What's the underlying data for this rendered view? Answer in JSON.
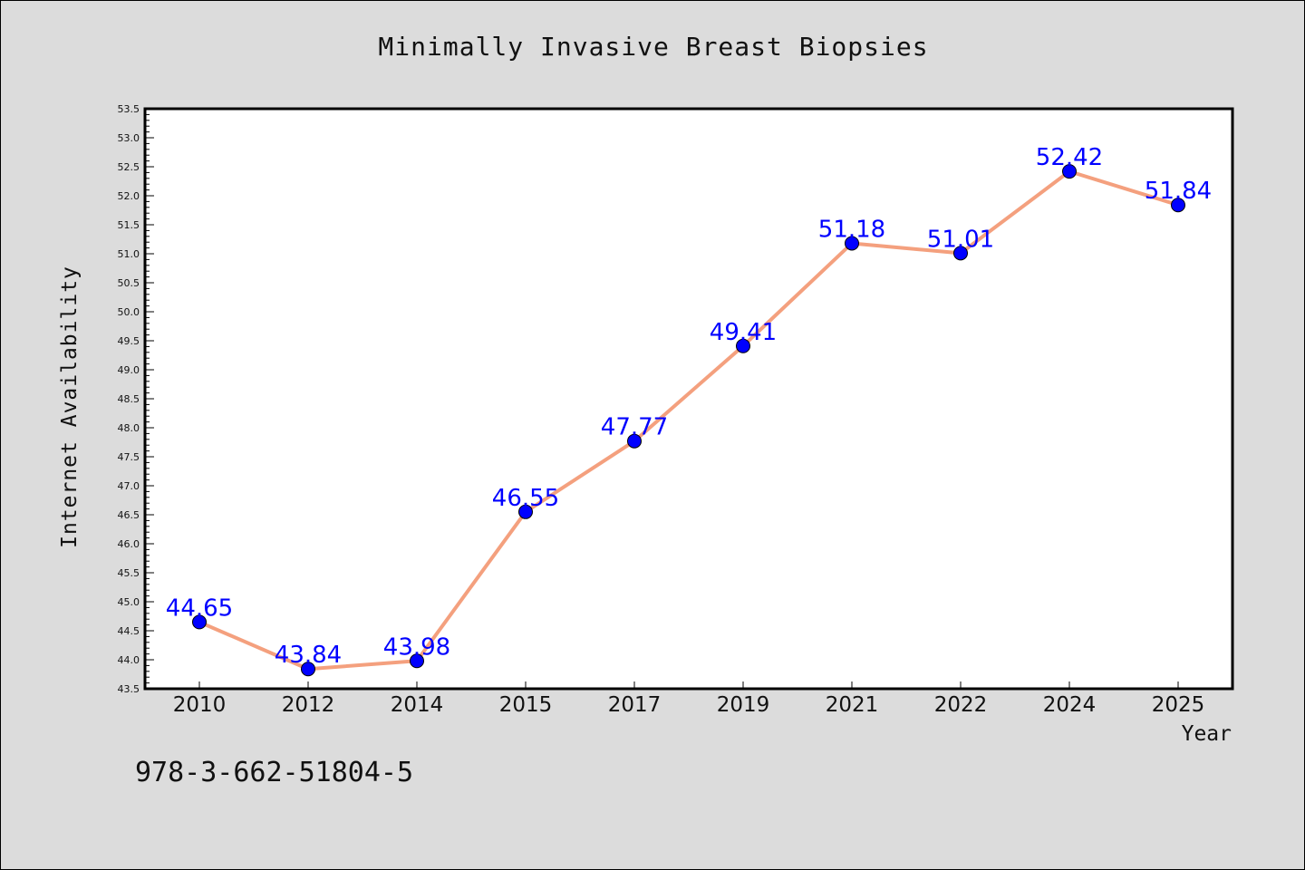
{
  "chart_data": {
    "type": "line",
    "title": "Minimally Invasive Breast Biopsies",
    "xlabel": "Year",
    "ylabel": "Internet Availability",
    "categories": [
      "2010",
      "2012",
      "2014",
      "2015",
      "2017",
      "2019",
      "2021",
      "2022",
      "2024",
      "2025"
    ],
    "series": [
      {
        "values": [
          44.65,
          43.84,
          43.98,
          46.55,
          47.77,
          49.41,
          51.18,
          51.01,
          52.42,
          51.84
        ]
      }
    ],
    "data_labels": [
      "44.65",
      "43.84",
      "43.98",
      "46.55",
      "47.77",
      "49.41",
      "51.18",
      "51.01",
      "52.42",
      "51.84"
    ],
    "ylim": [
      43.5,
      53.5
    ],
    "yticks": [
      "43.5",
      "44.0",
      "44.5",
      "45.0",
      "45.5",
      "46.0",
      "46.5",
      "47.0",
      "47.5",
      "48.0",
      "48.5",
      "49.0",
      "49.5",
      "50.0",
      "50.5",
      "51.0",
      "51.5",
      "52.0",
      "52.5",
      "53.0",
      "53.5"
    ],
    "grid": false,
    "line_color": "#f4a07e",
    "marker_color": "#0000ff",
    "label_color": "#0000ff"
  },
  "footnote": "978-3-662-51804-5"
}
